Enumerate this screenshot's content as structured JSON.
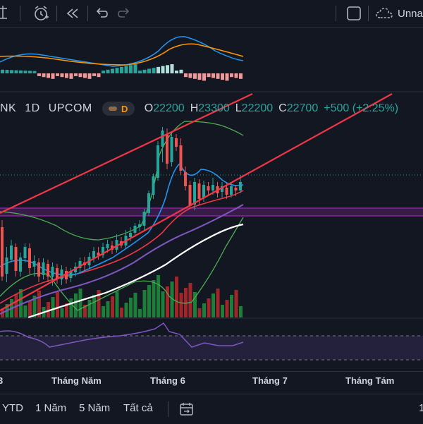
{
  "toolbar": {
    "icons": [
      "alert-clock-icon",
      "replay-icon",
      "undo-icon",
      "redo-icon",
      "layout-square-icon",
      "cloud-icon"
    ],
    "layout_name": "Unna"
  },
  "legend": {
    "symbol": "NK",
    "interval": "1D",
    "exchange": "UPCOM",
    "badge_letter": "D",
    "open_key": "O",
    "open": "22200",
    "high_key": "H",
    "high": "23300",
    "low_key": "L",
    "low": "22200",
    "close_key": "C",
    "close": "22700",
    "change": "+500 (+2.25%)"
  },
  "colors": {
    "up": "#26a69a",
    "down": "#ef5350",
    "trendline": "#f23645",
    "ma_fast": "#2196f3",
    "ma_slow": "#ff9800",
    "ma_white": "#ffffff",
    "ma_purple": "#7e57c2",
    "band_green": "#4caf50",
    "zone_purple": "#9c27b0"
  },
  "x_axis": [
    "3",
    "Tháng Năm",
    "Tháng 6",
    "Tháng 7",
    "Tháng Tám"
  ],
  "ranges": [
    "YTD",
    "1 Năm",
    "5 Năm",
    "Tất cả"
  ],
  "bottom_icons": [
    "compare-date-icon"
  ],
  "bottom_right_label": "1"
}
